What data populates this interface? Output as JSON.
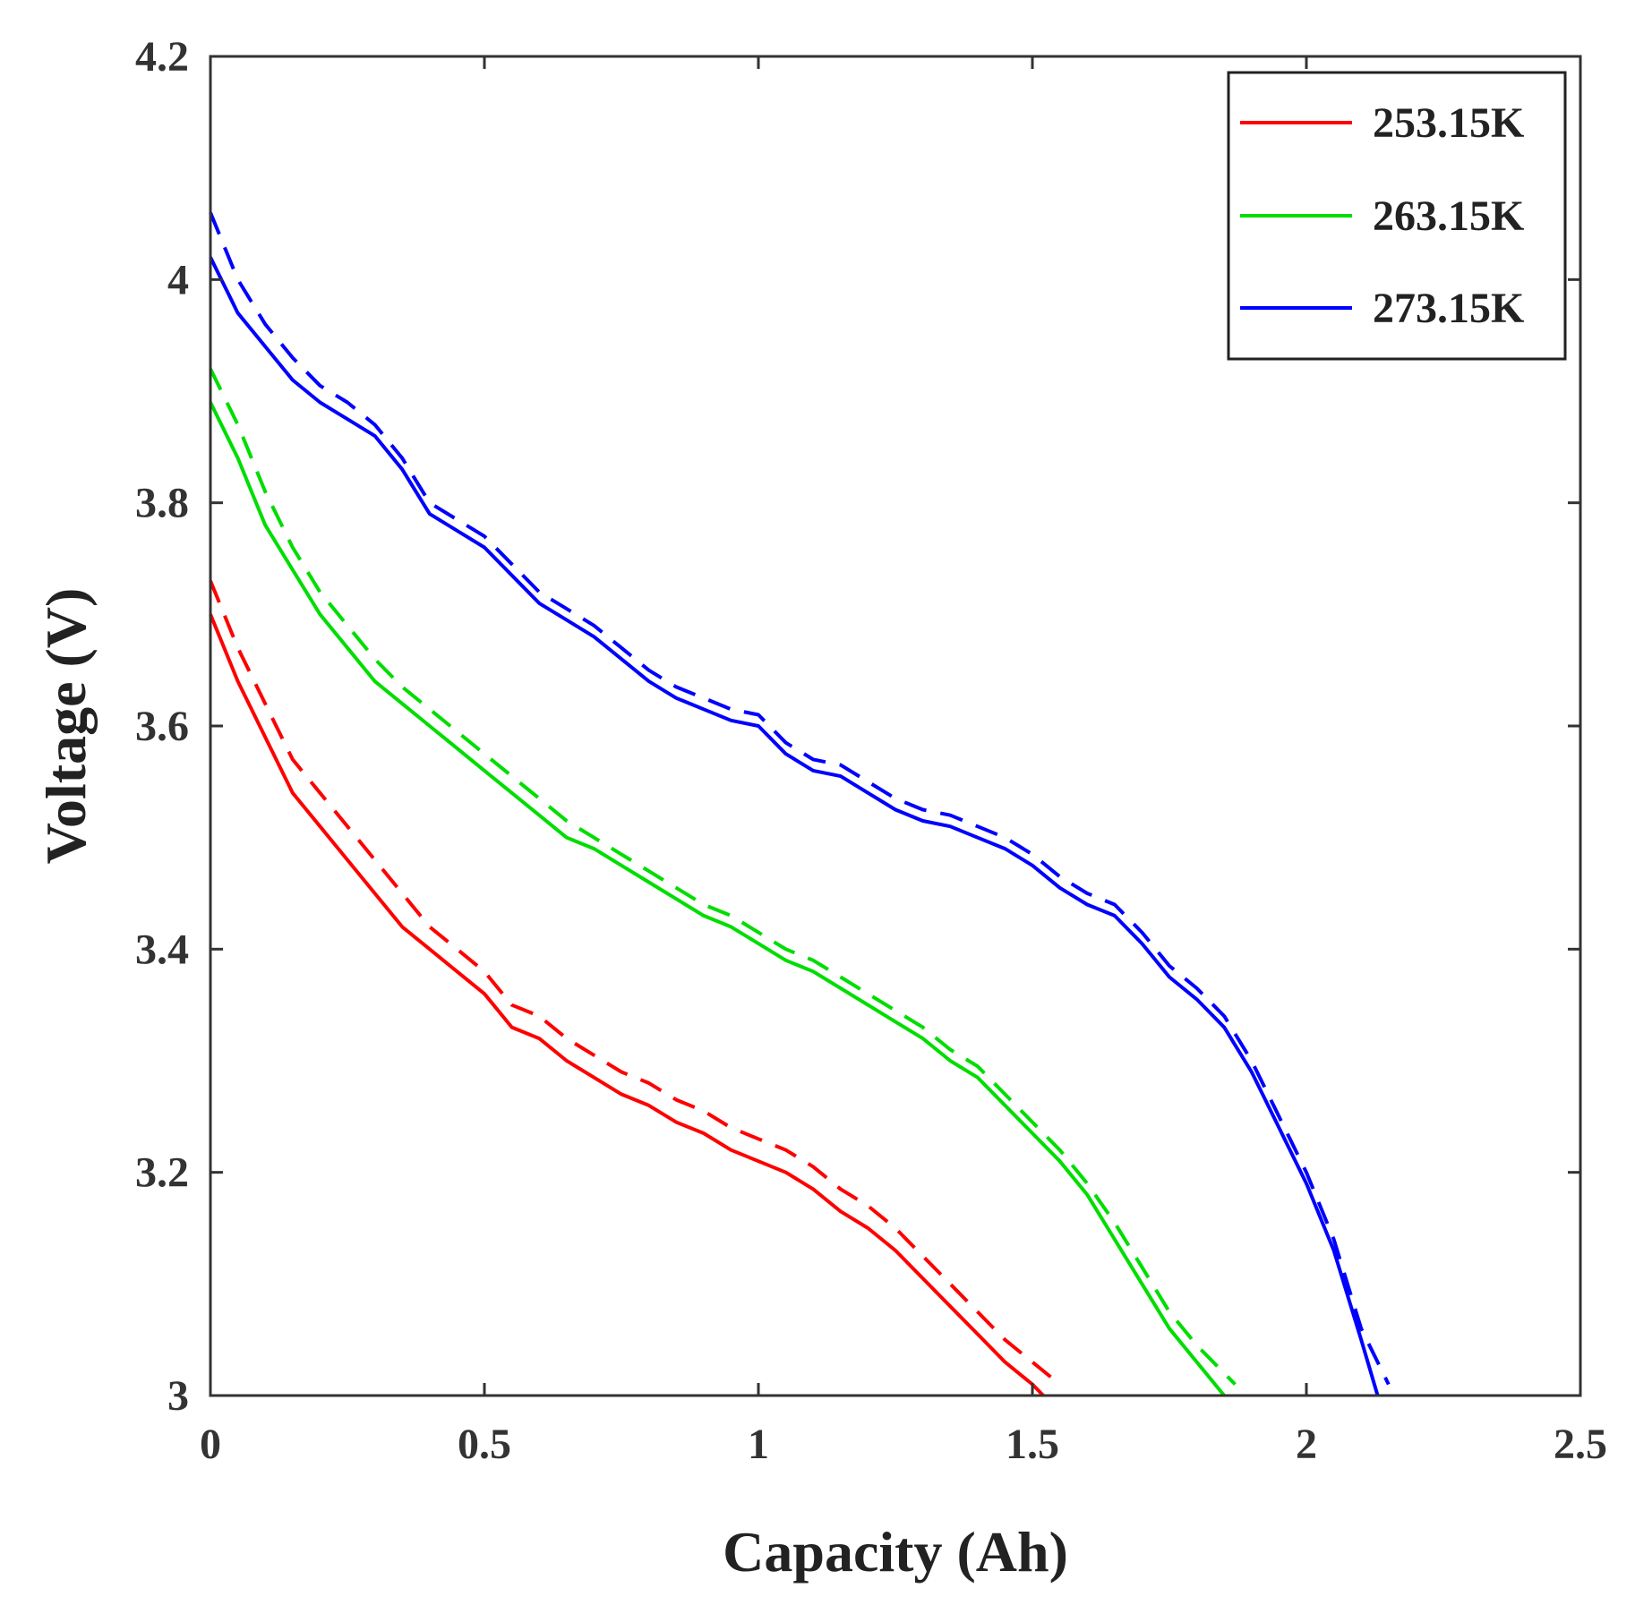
{
  "chart_data": {
    "type": "line",
    "title": "",
    "xlabel": "Capacity (Ah)",
    "ylabel": "Voltage (V)",
    "xlim": [
      0,
      2.5
    ],
    "ylim": [
      3,
      4.2
    ],
    "x_ticks": [
      0,
      0.5,
      1,
      1.5,
      2,
      2.5
    ],
    "x_tick_labels": [
      "0",
      "0.5",
      "1",
      "1.5",
      "2",
      "2.5"
    ],
    "y_ticks": [
      3,
      3.2,
      3.4,
      3.6,
      3.8,
      4.0,
      4.2
    ],
    "y_tick_labels": [
      "3",
      "3.2",
      "3.4",
      "3.6",
      "3.8",
      "4",
      "4.2"
    ],
    "grid": false,
    "legend_position": "top-right",
    "legend": [
      "253.15K",
      "263.15K",
      "273.15K"
    ],
    "series": [
      {
        "name": "253.15K",
        "color": "#ff0000",
        "style": "solid",
        "x": [
          0,
          0.05,
          0.1,
          0.15,
          0.2,
          0.25,
          0.3,
          0.35,
          0.4,
          0.45,
          0.5,
          0.55,
          0.6,
          0.65,
          0.7,
          0.75,
          0.8,
          0.85,
          0.9,
          0.95,
          1.0,
          1.05,
          1.1,
          1.15,
          1.2,
          1.25,
          1.3,
          1.35,
          1.4,
          1.45,
          1.5,
          1.52
        ],
        "y": [
          3.7,
          3.64,
          3.59,
          3.54,
          3.51,
          3.48,
          3.45,
          3.42,
          3.4,
          3.38,
          3.36,
          3.33,
          3.32,
          3.3,
          3.285,
          3.27,
          3.26,
          3.245,
          3.235,
          3.22,
          3.21,
          3.2,
          3.185,
          3.165,
          3.15,
          3.13,
          3.105,
          3.08,
          3.055,
          3.03,
          3.01,
          3.0
        ]
      },
      {
        "name": "253.15K (dashed)",
        "color": "#ff0000",
        "style": "dashed",
        "x": [
          0,
          0.05,
          0.1,
          0.15,
          0.2,
          0.25,
          0.3,
          0.35,
          0.4,
          0.45,
          0.5,
          0.55,
          0.6,
          0.65,
          0.7,
          0.75,
          0.8,
          0.85,
          0.9,
          0.95,
          1.0,
          1.05,
          1.1,
          1.15,
          1.2,
          1.25,
          1.3,
          1.35,
          1.4,
          1.45,
          1.5,
          1.55
        ],
        "y": [
          3.73,
          3.67,
          3.62,
          3.57,
          3.54,
          3.51,
          3.48,
          3.45,
          3.42,
          3.4,
          3.38,
          3.35,
          3.34,
          3.32,
          3.305,
          3.29,
          3.28,
          3.265,
          3.255,
          3.24,
          3.23,
          3.22,
          3.205,
          3.185,
          3.17,
          3.15,
          3.125,
          3.1,
          3.075,
          3.05,
          3.03,
          3.01
        ]
      },
      {
        "name": "263.15K",
        "color": "#00dd00",
        "style": "solid",
        "x": [
          0,
          0.05,
          0.1,
          0.15,
          0.2,
          0.25,
          0.3,
          0.35,
          0.4,
          0.45,
          0.5,
          0.55,
          0.6,
          0.65,
          0.7,
          0.75,
          0.8,
          0.85,
          0.9,
          0.95,
          1.0,
          1.05,
          1.1,
          1.15,
          1.2,
          1.25,
          1.3,
          1.35,
          1.4,
          1.45,
          1.5,
          1.55,
          1.6,
          1.65,
          1.7,
          1.75,
          1.8,
          1.85
        ],
        "y": [
          3.89,
          3.84,
          3.78,
          3.74,
          3.7,
          3.67,
          3.64,
          3.62,
          3.6,
          3.58,
          3.56,
          3.54,
          3.52,
          3.5,
          3.49,
          3.475,
          3.46,
          3.445,
          3.43,
          3.42,
          3.405,
          3.39,
          3.38,
          3.365,
          3.35,
          3.335,
          3.32,
          3.3,
          3.285,
          3.26,
          3.235,
          3.21,
          3.18,
          3.14,
          3.1,
          3.06,
          3.03,
          3.0
        ]
      },
      {
        "name": "263.15K (dashed)",
        "color": "#00dd00",
        "style": "dashed",
        "x": [
          0,
          0.05,
          0.1,
          0.15,
          0.2,
          0.25,
          0.3,
          0.35,
          0.4,
          0.45,
          0.5,
          0.55,
          0.6,
          0.65,
          0.7,
          0.75,
          0.8,
          0.85,
          0.9,
          0.95,
          1.0,
          1.05,
          1.1,
          1.15,
          1.2,
          1.25,
          1.3,
          1.35,
          1.4,
          1.45,
          1.5,
          1.55,
          1.6,
          1.65,
          1.7,
          1.75,
          1.8,
          1.87
        ],
        "y": [
          3.92,
          3.87,
          3.81,
          3.76,
          3.72,
          3.69,
          3.66,
          3.635,
          3.615,
          3.595,
          3.575,
          3.555,
          3.535,
          3.515,
          3.5,
          3.485,
          3.47,
          3.455,
          3.44,
          3.43,
          3.415,
          3.4,
          3.39,
          3.375,
          3.36,
          3.345,
          3.33,
          3.31,
          3.295,
          3.27,
          3.245,
          3.22,
          3.19,
          3.155,
          3.115,
          3.075,
          3.045,
          3.01
        ]
      },
      {
        "name": "273.15K",
        "color": "#0000ff",
        "style": "solid",
        "x": [
          0,
          0.05,
          0.1,
          0.15,
          0.2,
          0.25,
          0.3,
          0.35,
          0.4,
          0.45,
          0.5,
          0.55,
          0.6,
          0.65,
          0.7,
          0.75,
          0.8,
          0.85,
          0.9,
          0.95,
          1.0,
          1.05,
          1.1,
          1.15,
          1.2,
          1.25,
          1.3,
          1.35,
          1.4,
          1.45,
          1.5,
          1.55,
          1.6,
          1.65,
          1.7,
          1.75,
          1.8,
          1.85,
          1.9,
          1.95,
          2.0,
          2.05,
          2.1,
          2.13
        ],
        "y": [
          4.02,
          3.97,
          3.94,
          3.91,
          3.89,
          3.875,
          3.86,
          3.83,
          3.79,
          3.775,
          3.76,
          3.735,
          3.71,
          3.695,
          3.68,
          3.66,
          3.64,
          3.625,
          3.615,
          3.605,
          3.6,
          3.575,
          3.56,
          3.555,
          3.54,
          3.525,
          3.515,
          3.51,
          3.5,
          3.49,
          3.475,
          3.455,
          3.44,
          3.43,
          3.405,
          3.375,
          3.355,
          3.33,
          3.29,
          3.24,
          3.19,
          3.13,
          3.05,
          3.0
        ]
      },
      {
        "name": "273.15K (dashed)",
        "color": "#0000ff",
        "style": "dashed",
        "x": [
          0,
          0.05,
          0.1,
          0.15,
          0.2,
          0.25,
          0.3,
          0.35,
          0.4,
          0.45,
          0.5,
          0.55,
          0.6,
          0.65,
          0.7,
          0.75,
          0.8,
          0.85,
          0.9,
          0.95,
          1.0,
          1.05,
          1.1,
          1.15,
          1.2,
          1.25,
          1.3,
          1.35,
          1.4,
          1.45,
          1.5,
          1.55,
          1.6,
          1.65,
          1.7,
          1.75,
          1.8,
          1.85,
          1.9,
          1.95,
          2.0,
          2.05,
          2.1,
          2.15
        ],
        "y": [
          4.06,
          4.0,
          3.96,
          3.93,
          3.905,
          3.89,
          3.87,
          3.84,
          3.8,
          3.785,
          3.77,
          3.745,
          3.72,
          3.705,
          3.69,
          3.67,
          3.65,
          3.635,
          3.625,
          3.615,
          3.61,
          3.585,
          3.57,
          3.565,
          3.55,
          3.535,
          3.525,
          3.52,
          3.51,
          3.5,
          3.485,
          3.465,
          3.45,
          3.44,
          3.415,
          3.385,
          3.365,
          3.34,
          3.3,
          3.25,
          3.2,
          3.14,
          3.06,
          3.01
        ]
      }
    ]
  }
}
